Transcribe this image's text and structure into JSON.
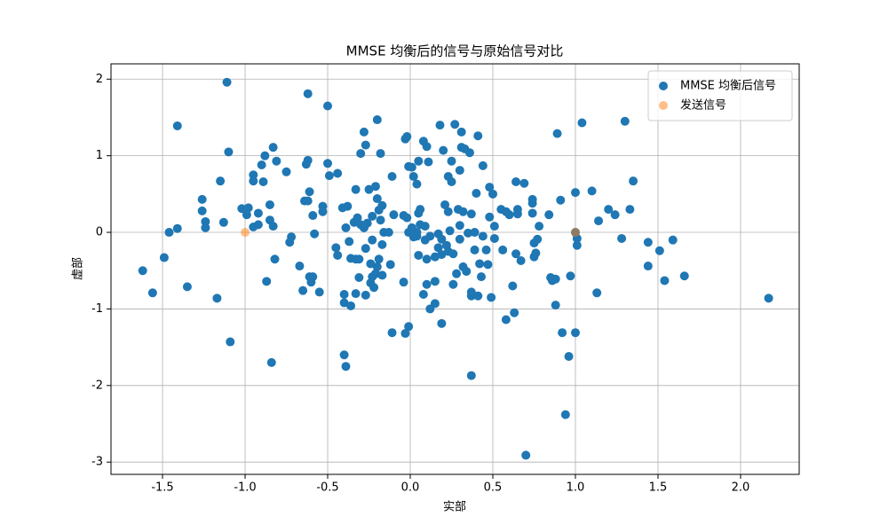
{
  "chart_data": {
    "type": "scatter",
    "title": "MMSE 均衡后的信号与原始信号对比",
    "xlabel": "实部",
    "ylabel": "虚部",
    "xlim": [
      -1.812,
      2.355
    ],
    "ylim": [
      -3.16,
      2.2
    ],
    "xticks": [
      -1.5,
      {
        "value": -1,
        "label": "-1.0"
      },
      -0.5,
      {
        "value": 0,
        "label": "0.0"
      },
      0.5,
      {
        "value": 1,
        "label": "1.0"
      },
      1.5,
      {
        "value": 2,
        "label": "2.0"
      }
    ],
    "yticks": [
      -3,
      -2,
      -1,
      0,
      1,
      2
    ],
    "grid": true,
    "legend": "upper right",
    "series": [
      {
        "name": "MMSE 均衡后信号",
        "color": "#1f77b4",
        "opacity": 1,
        "x": [
          -1.62,
          -1.56,
          -1.49,
          -1.46,
          -1.41,
          -1.41,
          -1.35,
          -1.26,
          -1.26,
          -1.24,
          -1.24,
          -1.17,
          -1.15,
          -1.13,
          -1.11,
          -1.1,
          -1.09,
          -1.02,
          -0.99,
          -0.98,
          -0.95,
          -0.95,
          -0.95,
          -0.92,
          -0.92,
          -0.9,
          -0.89,
          -0.88,
          -0.87,
          -0.85,
          -0.85,
          -0.84,
          -0.83,
          -0.83,
          -0.82,
          -0.81,
          -0.75,
          -0.73,
          -0.72,
          -0.67,
          -0.65,
          -0.64,
          -0.62,
          -0.63,
          -0.62,
          -0.62,
          -0.61,
          -0.61,
          -0.6,
          -0.59,
          -0.59,
          -0.58,
          -0.55,
          -0.53,
          -0.53,
          -0.5,
          -0.5,
          -0.49,
          -0.45,
          -0.44,
          -0.44,
          -0.41,
          -0.4,
          -0.4,
          -0.4,
          -0.39,
          -0.39,
          -0.38,
          -0.37,
          -0.36,
          -0.36,
          -0.34,
          -0.33,
          -0.33,
          -0.33,
          -0.32,
          -0.31,
          -0.31,
          -0.3,
          -0.3,
          -0.28,
          -0.28,
          -0.27,
          -0.27,
          -0.27,
          -0.26,
          -0.25,
          -0.24,
          -0.24,
          -0.23,
          -0.23,
          -0.23,
          -0.22,
          -0.21,
          -0.21,
          -0.2,
          -0.2,
          -0.2,
          -0.19,
          -0.19,
          -0.18,
          -0.18,
          -0.17,
          -0.17,
          -0.17,
          -0.16,
          -0.13,
          -0.12,
          -0.11,
          -0.11,
          -0.1,
          -0.04,
          -0.04,
          -0.03,
          -0.02,
          -0.03,
          -0.02,
          -0.01,
          -0.01,
          -0.01,
          0.01,
          0.01,
          0.02,
          0.02,
          0.04,
          0.04,
          0.04,
          0.05,
          0.05,
          0.05,
          0.06,
          0.06,
          0.08,
          0.08,
          0.09,
          0.09,
          0.1,
          0.1,
          0.1,
          0.11,
          0.12,
          0.12,
          0.15,
          0.15,
          0.15,
          0.17,
          0.17,
          0.18,
          0.19,
          0.19,
          0.19,
          0.2,
          0.21,
          0.22,
          0.23,
          0.23,
          0.23,
          0.24,
          0.25,
          0.25,
          0.26,
          0.26,
          0.27,
          0.28,
          0.29,
          0.3,
          0.3,
          0.3,
          0.31,
          0.31,
          0.32,
          0.32,
          0.33,
          0.34,
          0.35,
          0.36,
          0.37,
          0.37,
          0.37,
          0.37,
          0.39,
          0.39,
          0.4,
          0.41,
          0.41,
          0.42,
          0.43,
          0.44,
          0.44,
          0.46,
          0.47,
          0.48,
          0.48,
          0.49,
          0.5,
          0.51,
          0.51,
          0.55,
          0.56,
          0.58,
          0.58,
          0.6,
          0.62,
          0.63,
          0.64,
          0.64,
          0.65,
          0.65,
          0.67,
          0.69,
          0.7,
          0.74,
          0.74,
          0.74,
          0.75,
          0.75,
          0.76,
          0.77,
          0.78,
          0.84,
          0.85,
          0.86,
          0.88,
          0.88,
          0.89,
          0.91,
          0.92,
          0.94,
          0.96,
          0.97,
          1,
          1,
          1,
          1.01,
          1.01,
          1.04,
          1.1,
          1.13,
          1.14,
          1.2,
          1.24,
          1.28,
          1.3,
          1.33,
          1.35,
          1.44,
          1.44,
          1.51,
          1.54,
          1.59,
          1.66,
          2.17
        ],
        "y": [
          -0.5,
          -0.79,
          -0.33,
          0,
          1.39,
          0.05,
          -0.71,
          0.43,
          0.28,
          0.14,
          0.06,
          -0.86,
          0.67,
          0.13,
          1.96,
          1.05,
          -1.43,
          0.31,
          0.23,
          0.32,
          0.07,
          0.75,
          0.67,
          0.25,
          0.1,
          0.88,
          0.66,
          1,
          -0.64,
          0.36,
          0.16,
          -1.7,
          1.11,
          0.08,
          -0.35,
          0.93,
          0.79,
          -0.13,
          -0.06,
          -0.44,
          -0.76,
          0.41,
          0.41,
          0.89,
          0.94,
          1.81,
          0.53,
          -0.58,
          -0.65,
          0.22,
          -0.58,
          -0.02,
          -0.78,
          0.34,
          0.27,
          1.65,
          0.9,
          0.74,
          -0.2,
          0.77,
          -0.3,
          0.32,
          -0.81,
          -0.92,
          -1.6,
          -1.75,
          0.06,
          0.34,
          -0.12,
          -0.34,
          -0.96,
          0.13,
          -0.35,
          0.56,
          -0.8,
          0.19,
          -0.35,
          -0.59,
          0.1,
          1.03,
          0.06,
          1.31,
          -0.21,
          -0.82,
          1.14,
          0.12,
          0.56,
          -0.66,
          -0.41,
          0.21,
          -0.1,
          -0.58,
          -0.72,
          -0.54,
          0.6,
          -0.45,
          1.47,
          0.44,
          0.29,
          -0.35,
          0.16,
          1.03,
          -0.16,
          -0.56,
          0.35,
          0,
          0,
          -0.42,
          0.73,
          -1.31,
          0.23,
          -0.65,
          0.22,
          1.22,
          1.25,
          -1.32,
          0.19,
          -1.23,
          0.86,
          0,
          0.06,
          0.85,
          0.73,
          -0.06,
          -0.05,
          0.63,
          0,
          -0.3,
          0.93,
          0.25,
          0.3,
          0.1,
          1.19,
          -0.81,
          0.08,
          -0.1,
          -0.35,
          -0.68,
          1.12,
          0.92,
          -1,
          -0.05,
          -0.93,
          -0.64,
          -0.32,
          -0.2,
          -0.02,
          1.4,
          -0.29,
          -0.09,
          -1.19,
          1.07,
          0.36,
          -0.17,
          0.27,
          0.73,
          -0.25,
          0.02,
          0.93,
          0.66,
          -0.28,
          -0.68,
          1.41,
          -0.54,
          0.3,
          0.81,
          -0.09,
          0.09,
          1.11,
          1.31,
          -0.45,
          0.27,
          1.09,
          -0.51,
          -0.01,
          1.04,
          -0.83,
          -1.87,
          0.24,
          -0.78,
          0,
          -0.23,
          0.51,
          1.26,
          -0.83,
          -0.41,
          -0.58,
          0.87,
          -0.05,
          -0.23,
          -0.42,
          0.59,
          0.2,
          -0.85,
          0.5,
          -0.08,
          0.08,
          0.3,
          -0.23,
          0.27,
          -1.14,
          0.23,
          -0.7,
          -1.05,
          -0.28,
          0.66,
          0.24,
          0.3,
          -0.37,
          0.64,
          -2.91,
          0.25,
          0.43,
          0.38,
          -0.14,
          -0.32,
          -0.27,
          -0.09,
          0.08,
          0.23,
          -0.59,
          -0.63,
          -0.61,
          -0.95,
          1.29,
          0.42,
          -1.31,
          -2.38,
          -1.62,
          -0.57,
          0.52,
          0,
          -1.31,
          -0.08,
          -0.17,
          1.43,
          0.54,
          -0.79,
          0.15,
          0.3,
          0.23,
          -0.08,
          1.45,
          0.3,
          0.67,
          -0.13,
          -0.44,
          -0.24,
          -0.63,
          -0.1,
          -0.57,
          -0.86
        ]
      },
      {
        "name": "发送信号",
        "color": "#ff7f0e",
        "opacity": 0.5,
        "x": [
          -1,
          1
        ],
        "y": [
          0,
          0
        ]
      }
    ]
  }
}
